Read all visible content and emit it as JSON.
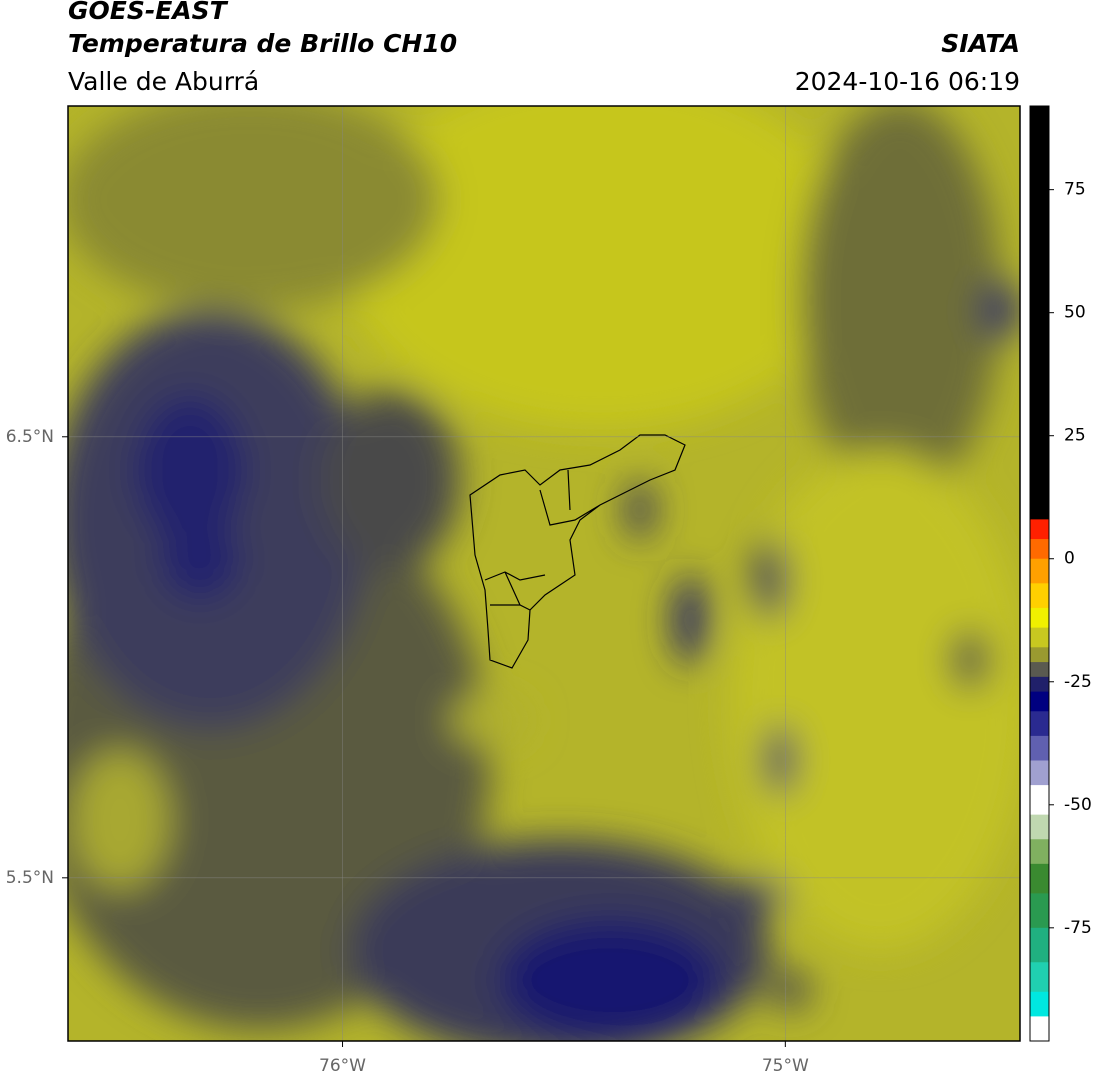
{
  "chart_data": {
    "type": "map",
    "title": "GOES-EAST",
    "subtitle": "Temperatura de Brillo CH10",
    "region": "Valle de Aburrá",
    "source": "SIATA",
    "timestamp": "2024-10-16 06:19",
    "xlim": [
      -76.62,
      -74.47
    ],
    "ylim": [
      5.13,
      7.25
    ],
    "xticks": [
      {
        "value": -76,
        "label": "76°W"
      },
      {
        "value": -75,
        "label": "75°W"
      }
    ],
    "yticks": [
      {
        "value": 6.5,
        "label": "6.5°N"
      },
      {
        "value": 5.5,
        "label": "5.5°N"
      }
    ],
    "grid": true,
    "clim": [
      -98,
      92
    ],
    "cticks": [
      75,
      50,
      25,
      0,
      -25,
      -50,
      -75
    ],
    "colormap": [
      {
        "from": 8,
        "to": 92,
        "color": "#000000"
      },
      {
        "from": 4,
        "to": 8,
        "color": "#ff2000"
      },
      {
        "from": 0,
        "to": 4,
        "color": "#ff6a00"
      },
      {
        "from": -5,
        "to": 0,
        "color": "#ffa000"
      },
      {
        "from": -10,
        "to": -5,
        "color": "#ffd000"
      },
      {
        "from": -14,
        "to": -10,
        "color": "#f0f000"
      },
      {
        "from": -18,
        "to": -14,
        "color": "#c8c820"
      },
      {
        "from": -21,
        "to": -18,
        "color": "#9a9a30"
      },
      {
        "from": -24,
        "to": -21,
        "color": "#5a5a50"
      },
      {
        "from": -27,
        "to": -24,
        "color": "#20206a"
      },
      {
        "from": -31,
        "to": -27,
        "color": "#000080"
      },
      {
        "from": -36,
        "to": -31,
        "color": "#2a2a90"
      },
      {
        "from": -41,
        "to": -36,
        "color": "#6060b0"
      },
      {
        "from": -46,
        "to": -41,
        "color": "#a0a0d0"
      },
      {
        "from": -52,
        "to": -46,
        "color": "#ffffff"
      },
      {
        "from": -57,
        "to": -52,
        "color": "#c0d8b0"
      },
      {
        "from": -62,
        "to": -57,
        "color": "#80b060"
      },
      {
        "from": -68,
        "to": -62,
        "color": "#3a8a30"
      },
      {
        "from": -75,
        "to": -68,
        "color": "#2a9a50"
      },
      {
        "from": -82,
        "to": -75,
        "color": "#20b080"
      },
      {
        "from": -88,
        "to": -82,
        "color": "#20d0b0"
      },
      {
        "from": -93,
        "to": -88,
        "color": "#00e8e0"
      },
      {
        "from": -98,
        "to": -93,
        "color": "#ffffff"
      }
    ]
  }
}
